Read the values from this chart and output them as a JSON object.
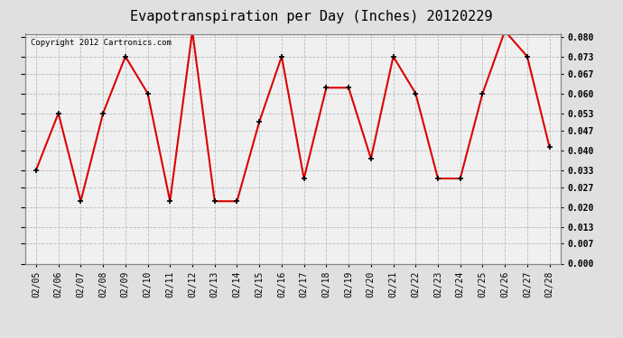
{
  "title": "Evapotranspiration per Day (Inches) 20120229",
  "copyright": "Copyright 2012 Cartronics.com",
  "x_labels": [
    "02/05",
    "02/06",
    "02/07",
    "02/08",
    "02/09",
    "02/10",
    "02/11",
    "02/12",
    "02/13",
    "02/14",
    "02/15",
    "02/16",
    "02/17",
    "02/18",
    "02/19",
    "02/20",
    "02/21",
    "02/22",
    "02/23",
    "02/24",
    "02/25",
    "02/26",
    "02/27",
    "02/28"
  ],
  "y_values": [
    0.033,
    0.053,
    0.022,
    0.053,
    0.073,
    0.06,
    0.022,
    0.082,
    0.022,
    0.022,
    0.05,
    0.073,
    0.03,
    0.062,
    0.062,
    0.037,
    0.073,
    0.06,
    0.03,
    0.03,
    0.06,
    0.082,
    0.073,
    0.041
  ],
  "line_color": "#dd0000",
  "marker": "+",
  "marker_color": "#000000",
  "bg_color": "#e0e0e0",
  "plot_bg_color": "#f0f0f0",
  "grid_color": "#bbbbbb",
  "y_min": 0.0,
  "y_max": 0.08,
  "y_ticks": [
    0.0,
    0.007,
    0.013,
    0.02,
    0.027,
    0.033,
    0.04,
    0.047,
    0.053,
    0.06,
    0.067,
    0.073,
    0.08
  ],
  "title_fontsize": 11,
  "tick_fontsize": 7,
  "copyright_fontsize": 6.5
}
